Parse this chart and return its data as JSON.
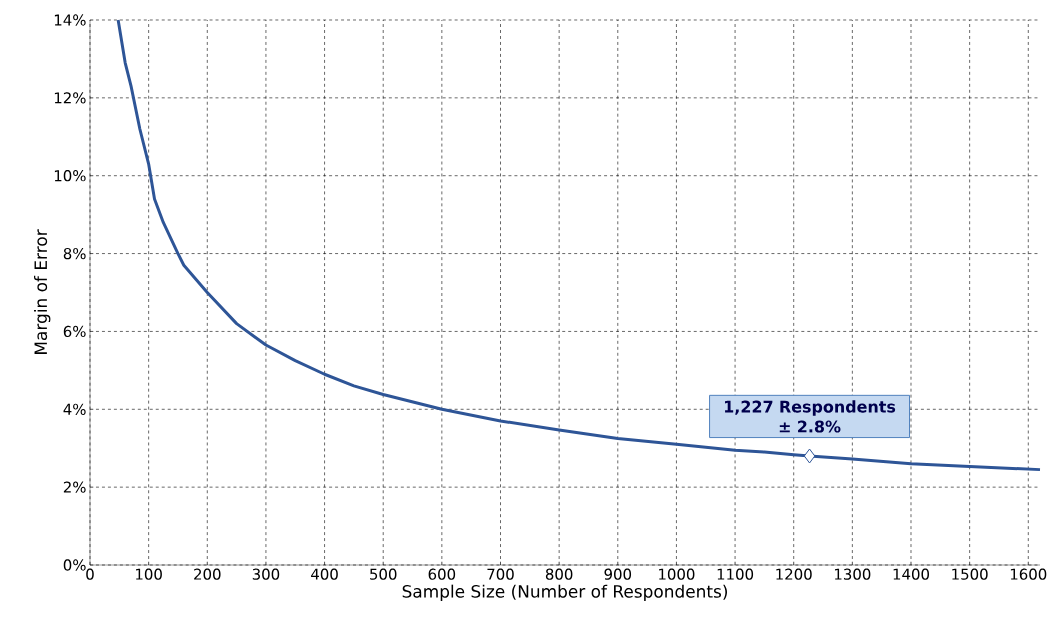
{
  "chart_data": {
    "type": "line",
    "xlabel": "Sample Size (Number of Respondents)",
    "ylabel": "Margin of Error",
    "series": [
      {
        "color": "#2e5597",
        "x": [
          48,
          60,
          70,
          85,
          100,
          110,
          125,
          150,
          160,
          200,
          250,
          300,
          350,
          400,
          450,
          500,
          600,
          700,
          800,
          900,
          1000,
          1100,
          1150,
          1200,
          1227,
          1300,
          1400,
          1500,
          1620
        ],
        "values": [
          14.0,
          12.9,
          12.3,
          11.2,
          10.3,
          9.4,
          8.8,
          8.0,
          7.7,
          7.0,
          6.2,
          5.65,
          5.25,
          4.9,
          4.6,
          4.38,
          4.0,
          3.7,
          3.47,
          3.25,
          3.1,
          2.95,
          2.9,
          2.83,
          2.8,
          2.72,
          2.6,
          2.53,
          2.45
        ]
      },
      {
        "type": "scatter",
        "color": "#2e5597",
        "marker": "diamond",
        "x": [
          1227
        ],
        "values": [
          2.8
        ]
      }
    ],
    "xlim": [
      0,
      1620
    ],
    "ylim": [
      0,
      14
    ],
    "xticks": [
      0,
      100,
      200,
      300,
      400,
      500,
      600,
      700,
      800,
      900,
      1000,
      1100,
      1200,
      1300,
      1400,
      1500,
      1600
    ],
    "yticks": [
      {
        "value": 0,
        "label": "0%"
      },
      {
        "value": 2,
        "label": "2%"
      },
      {
        "value": 4,
        "label": "4%"
      },
      {
        "value": 6,
        "label": "6%"
      },
      {
        "value": 8,
        "label": "8%"
      },
      {
        "value": 10,
        "label": "10%"
      },
      {
        "value": 12,
        "label": "12%"
      },
      {
        "value": 14,
        "label": "14%"
      }
    ],
    "grid": true,
    "annotations": [
      {
        "text": "1,227 Respondents ± 2.8%",
        "x": 1227,
        "y": 2.8
      }
    ]
  }
}
